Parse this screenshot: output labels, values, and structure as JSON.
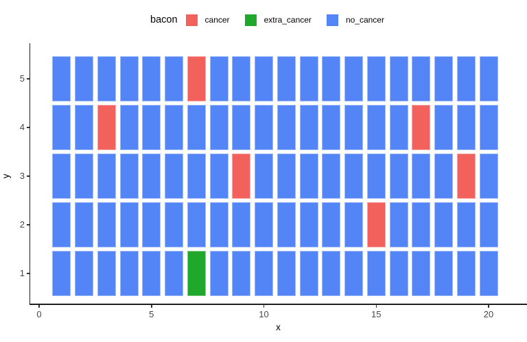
{
  "legend": {
    "title": "bacon",
    "items": [
      {
        "label": "cancer",
        "color": "#F2615C"
      },
      {
        "label": "extra_cancer",
        "color": "#1FA82B"
      },
      {
        "label": "no_cancer",
        "color": "#5385F7"
      }
    ]
  },
  "chart_data": {
    "type": "heatmap",
    "title": "",
    "xlabel": "x",
    "ylabel": "y",
    "legend_title": "bacon",
    "legend_position": "top",
    "grid": false,
    "rows": 5,
    "columns": 20,
    "x_ticks": [
      0,
      5,
      10,
      15,
      20
    ],
    "y_ticks": [
      1,
      2,
      3,
      4,
      5
    ],
    "x_range": [
      0,
      21
    ],
    "y_range": [
      0.5,
      5.5
    ],
    "fills": {
      "cancer": "#F2615C",
      "extra_cancer": "#1FA82B",
      "no_cancer": "#5385F7"
    },
    "default_fill": "no_cancer",
    "special_tiles": [
      {
        "x": 7,
        "y": 5,
        "fill": "cancer"
      },
      {
        "x": 3,
        "y": 4,
        "fill": "cancer"
      },
      {
        "x": 17,
        "y": 4,
        "fill": "cancer"
      },
      {
        "x": 9,
        "y": 3,
        "fill": "cancer"
      },
      {
        "x": 19,
        "y": 3,
        "fill": "cancer"
      },
      {
        "x": 15,
        "y": 2,
        "fill": "cancer"
      },
      {
        "x": 7,
        "y": 1,
        "fill": "extra_cancer"
      }
    ]
  }
}
